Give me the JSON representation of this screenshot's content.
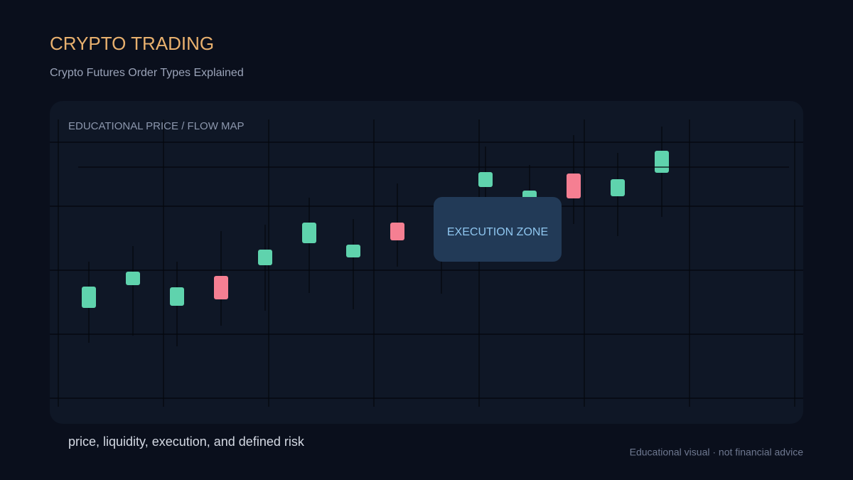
{
  "header": {
    "title": "CRYPTO TRADING",
    "subtitle": "Crypto Futures Order Types Explained"
  },
  "panel": {
    "label": "EDUCATIONAL PRICE / FLOW MAP",
    "zone_label": "EXECUTION ZONE"
  },
  "footer": {
    "caption": "price, liquidity, execution, and defined risk",
    "disclaimer": "Educational visual · not financial advice"
  }
}
